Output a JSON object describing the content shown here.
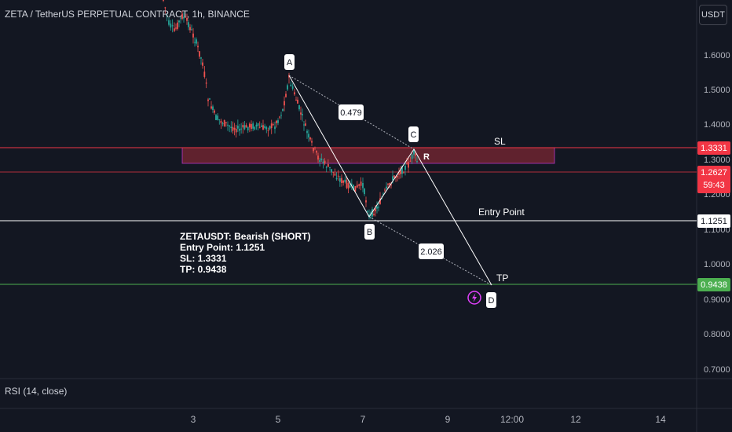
{
  "header": {
    "title": "ZETA / TetherUS PERPETUAL CONTRACT, 1h, BINANCE",
    "currency_button": "USDT"
  },
  "price_axis": {
    "ticks": [
      "1.6000",
      "1.5000",
      "1.4000",
      "1.3000",
      "1.2000",
      "1.1000",
      "1.0000",
      "0.9000",
      "0.8000",
      "0.7000"
    ]
  },
  "time_axis": {
    "ticks": [
      "3",
      "5",
      "7",
      "9",
      "12:00",
      "12",
      "14"
    ]
  },
  "price_tags": {
    "sl": {
      "value": "1.3331",
      "color": "#f23645"
    },
    "current": {
      "value": "1.2627",
      "countdown": "59:43",
      "color": "#f23645"
    },
    "entry": {
      "value": "1.1251",
      "color": "#ffffff"
    },
    "tp": {
      "value": "0.9438",
      "color": "#4caf50"
    }
  },
  "pattern": {
    "points": {
      "A": "A",
      "B": "B",
      "C": "C",
      "D": "D",
      "R": "R"
    },
    "ratios": {
      "ab_c": "0.479",
      "bd": "2.026"
    }
  },
  "lines": {
    "sl_label": "SL",
    "entry_label": "Entry Point",
    "tp_label": "TP"
  },
  "info": {
    "line1": "ZETAUSDT: Bearish (SHORT)",
    "line2": "Entry Point: 1.1251",
    "line3": "SL: 1.3331",
    "line4": "TP: 0.9438"
  },
  "indicator": {
    "rsi_label": "RSI (14, close)"
  },
  "chart_data": {
    "type": "candlestick",
    "symbol": "ZETAUSDT",
    "ylim": [
      0.68,
      1.74
    ],
    "pattern_prices": {
      "A": 1.54,
      "B": 1.13,
      "C": 1.323,
      "D": 0.9438
    },
    "sl": 1.3331,
    "entry": 1.1251,
    "tp": 0.9438,
    "current": 1.2627,
    "colors": {
      "up": "#26a69a",
      "down": "#ef5350",
      "zone": "#f23645"
    }
  }
}
